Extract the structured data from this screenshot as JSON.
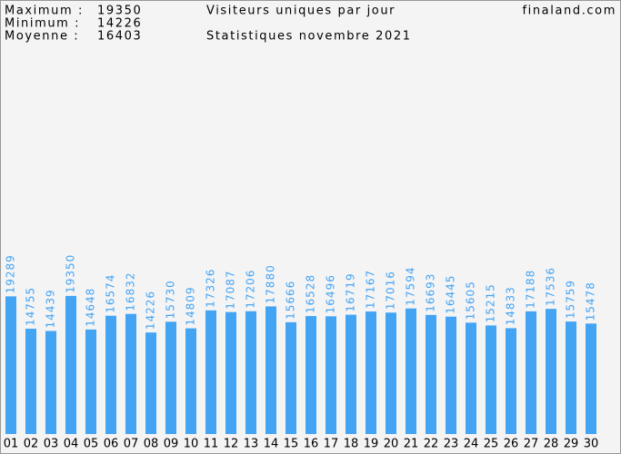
{
  "chart_data": {
    "type": "bar",
    "title": "Visiteurs uniques par jour",
    "subtitle": "Statistiques novembre 2021",
    "site": "finaland.com",
    "stats": [
      {
        "label": "Maximum :",
        "value": 19350
      },
      {
        "label": "Minimum :",
        "value": 14226
      },
      {
        "label": "Moyenne :",
        "value": 16403
      }
    ],
    "categories": [
      "01",
      "02",
      "03",
      "04",
      "05",
      "06",
      "07",
      "08",
      "09",
      "10",
      "11",
      "12",
      "13",
      "14",
      "15",
      "16",
      "17",
      "18",
      "19",
      "20",
      "21",
      "22",
      "23",
      "24",
      "25",
      "26",
      "27",
      "28",
      "29",
      "30"
    ],
    "values": [
      19289,
      14755,
      14439,
      19350,
      14648,
      16574,
      16832,
      14226,
      15730,
      14809,
      17326,
      17087,
      17206,
      17880,
      15666,
      16528,
      16496,
      16719,
      17167,
      17016,
      17594,
      16693,
      16445,
      15605,
      15215,
      14833,
      17188,
      17536,
      15759,
      15478
    ],
    "color": "#44a4f4",
    "ylim": [
      0,
      25000
    ]
  }
}
